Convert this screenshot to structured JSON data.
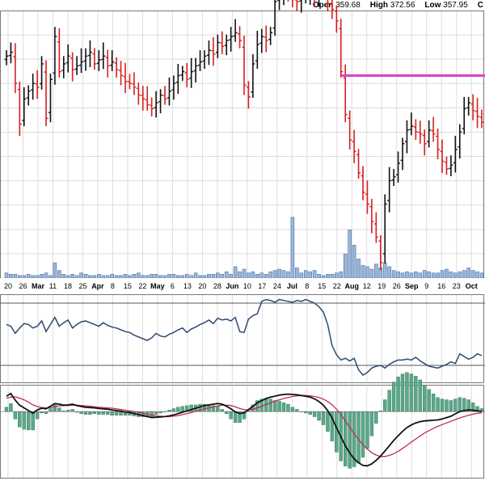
{
  "header": {
    "open_label": "Open",
    "open_value": "359.68",
    "high_label": "High",
    "high_value": "372.56",
    "low_label": "Low",
    "low_value": "357.95",
    "close_label": "C"
  },
  "colors": {
    "up": "#111111",
    "down": "#d62020",
    "grid": "#dcdcdc",
    "volume_fill": "#9db6d8",
    "volume_stroke": "#4a6fa5",
    "horizontal_line": "#e040c8",
    "indicator_line": "#2e4a6e",
    "macd_line": "#111111",
    "signal_line": "#c0304a",
    "histogram": "#5aa88a"
  },
  "chart_data": [
    {
      "type": "ohlc",
      "panel": "price",
      "x_tick_labels": [
        "20",
        "26",
        "Mar",
        "11",
        "18",
        "25",
        "Apr",
        "8",
        "15",
        "22",
        "May",
        "6",
        "13",
        "20",
        "28",
        "Jun",
        "10",
        "17",
        "24",
        "Jul",
        "8",
        "15",
        "22",
        "Aug",
        "12",
        "19",
        "26",
        "Sep",
        "9",
        "16",
        "23",
        "Oct"
      ],
      "ylim": [
        262,
        394
      ],
      "grid": true,
      "horizontal_line": 366,
      "closes": [
        376,
        378,
        362,
        341,
        354,
        358,
        362,
        360,
        372,
        344,
        364,
        386,
        368,
        372,
        376,
        369,
        371,
        373,
        376,
        378,
        372,
        374,
        376,
        371,
        373,
        369,
        366,
        363,
        362,
        360,
        356,
        354,
        351,
        349,
        352,
        356,
        354,
        358,
        362,
        366,
        368,
        364,
        368,
        371,
        373,
        376,
        379,
        377,
        383,
        381,
        384,
        386,
        388,
        384,
        361,
        355,
        372,
        382,
        386,
        384,
        388,
        404,
        408,
        409,
        407,
        405,
        404,
        406,
        406,
        408,
        407,
        409,
        411,
        403,
        400,
        394,
        368,
        346,
        333,
        327,
        316,
        306,
        300,
        291,
        283,
        270,
        300,
        312,
        314,
        321,
        331,
        338,
        340,
        337,
        336,
        331,
        338,
        336,
        328,
        322,
        318,
        320,
        328,
        337,
        349,
        352,
        348,
        345,
        342
      ],
      "volume": {
        "values": [
          4,
          3,
          3,
          2,
          2,
          3,
          2,
          2,
          3,
          4,
          2,
          12,
          6,
          3,
          2,
          3,
          2,
          4,
          3,
          2,
          2,
          3,
          2,
          2,
          3,
          2,
          2,
          3,
          2,
          3,
          4,
          2,
          2,
          3,
          3,
          2,
          2,
          3,
          3,
          2,
          2,
          3,
          2,
          4,
          2,
          2,
          3,
          3,
          4,
          3,
          5,
          3,
          9,
          5,
          7,
          4,
          5,
          3,
          4,
          3,
          5,
          6,
          7,
          6,
          5,
          48,
          8,
          4,
          6,
          5,
          6,
          3,
          2,
          3,
          3,
          4,
          5,
          19,
          38,
          26,
          15,
          10,
          9,
          7,
          11,
          8,
          12,
          9,
          6,
          5,
          4,
          5,
          4,
          5,
          4,
          6,
          5,
          4,
          4,
          6,
          7,
          5,
          4,
          5,
          6,
          8,
          6,
          5,
          4
        ],
        "ylim": [
          0,
          60
        ]
      }
    },
    {
      "type": "line",
      "panel": "indicator",
      "ylim": [
        0,
        100
      ],
      "reference_lines": [
        90,
        20
      ],
      "values": [
        66,
        64,
        56,
        62,
        67,
        66,
        62,
        64,
        70,
        58,
        66,
        74,
        64,
        68,
        71,
        62,
        66,
        69,
        70,
        68,
        66,
        64,
        68,
        65,
        63,
        62,
        60,
        58,
        57,
        54,
        52,
        50,
        48,
        51,
        56,
        53,
        52,
        55,
        57,
        60,
        62,
        57,
        61,
        63,
        66,
        68,
        71,
        67,
        73,
        71,
        72,
        70,
        74,
        58,
        57,
        72,
        76,
        78,
        92,
        94,
        93,
        91,
        94,
        93,
        92,
        91,
        93,
        92,
        94,
        92,
        90,
        86,
        80,
        66,
        42,
        32,
        26,
        28,
        25,
        28,
        15,
        9,
        12,
        17,
        19,
        20,
        17,
        21,
        24,
        26,
        26,
        27,
        26,
        29,
        25,
        22,
        19,
        18,
        17,
        19,
        21,
        24,
        22,
        33,
        30,
        27,
        29,
        33,
        31
      ]
    },
    {
      "type": "macd",
      "panel": "macd",
      "ylim": [
        -20,
        8
      ],
      "macd": [
        4.6,
        5.4,
        3.4,
        1.9,
        1.1,
        0.3,
        -0.5,
        0.5,
        1.0,
        0.8,
        1.6,
        2.4,
        2.2,
        1.9,
        2.0,
        2.2,
        1.8,
        1.5,
        1.3,
        1.2,
        1.1,
        0.9,
        0.8,
        0.7,
        0.5,
        0.3,
        0.1,
        -0.1,
        -0.3,
        -0.6,
        -0.9,
        -1.2,
        -1.5,
        -1.8,
        -1.7,
        -1.6,
        -1.5,
        -1.3,
        -1.0,
        -0.6,
        -0.2,
        0.2,
        0.6,
        1.0,
        1.4,
        1.8,
        2.0,
        2.2,
        2.4,
        2.2,
        1.6,
        0.8,
        -0.1,
        -0.6,
        -0.4,
        0.6,
        1.6,
        2.6,
        3.3,
        3.9,
        4.3,
        4.6,
        4.9,
        5.1,
        5.2,
        5.1,
        5.0,
        4.8,
        4.6,
        4.3,
        3.8,
        3.0,
        1.9,
        0.3,
        -2.0,
        -4.8,
        -7.6,
        -10.2,
        -12.4,
        -14.1,
        -15.3,
        -16.1,
        -16.2,
        -15.6,
        -14.6,
        -13.3,
        -11.8,
        -10.2,
        -8.6,
        -7.2,
        -5.9,
        -4.8,
        -4.0,
        -3.4,
        -3.0,
        -2.8,
        -2.7,
        -2.6,
        -2.5,
        -2.2,
        -1.8,
        -1.4,
        -0.7,
        0.0,
        0.3,
        0.5,
        0.4,
        0.2,
        0.0
      ],
      "signal": [
        4.0,
        4.3,
        4.4,
        4.0,
        3.5,
        2.8,
        2.0,
        1.5,
        1.2,
        1.1,
        1.2,
        1.5,
        1.7,
        1.8,
        1.8,
        1.9,
        1.9,
        1.8,
        1.7,
        1.6,
        1.4,
        1.3,
        1.2,
        1.1,
        1.0,
        0.8,
        0.6,
        0.4,
        0.2,
        0.0,
        -0.2,
        -0.5,
        -0.8,
        -1.1,
        -1.3,
        -1.4,
        -1.5,
        -1.5,
        -1.4,
        -1.2,
        -0.9,
        -0.6,
        -0.3,
        0.1,
        0.4,
        0.8,
        1.1,
        1.4,
        1.7,
        1.9,
        1.9,
        1.8,
        1.4,
        0.9,
        0.6,
        0.5,
        0.7,
        1.1,
        1.6,
        2.1,
        2.6,
        3.1,
        3.5,
        3.9,
        4.2,
        4.5,
        4.7,
        4.8,
        4.8,
        4.7,
        4.5,
        4.2,
        3.7,
        3.0,
        2.0,
        0.7,
        -0.9,
        -2.8,
        -4.7,
        -6.6,
        -8.3,
        -9.9,
        -11.2,
        -12.3,
        -13.0,
        -13.4,
        -13.4,
        -13.1,
        -12.6,
        -11.9,
        -11.0,
        -10.1,
        -9.1,
        -8.2,
        -7.3,
        -6.4,
        -5.7,
        -5.0,
        -4.4,
        -3.9,
        -3.4,
        -2.9,
        -2.4,
        -1.9,
        -1.5,
        -1.1,
        -0.8,
        -0.5,
        -0.4
      ]
    }
  ]
}
